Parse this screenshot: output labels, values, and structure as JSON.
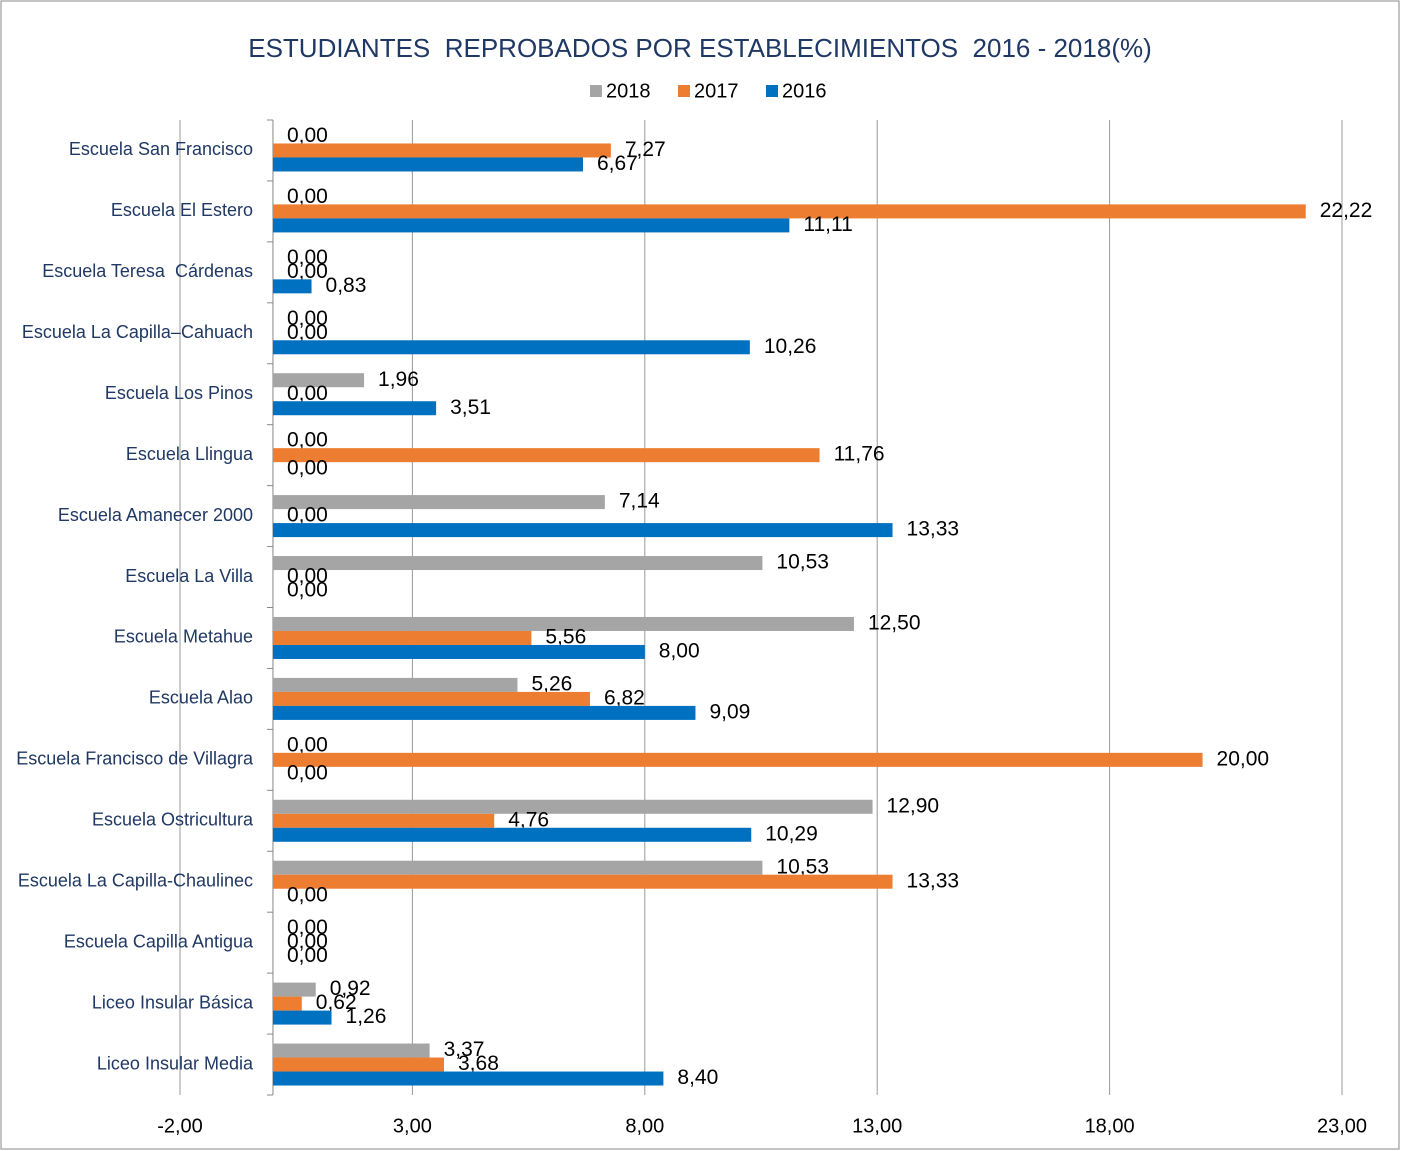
{
  "chart_data": {
    "type": "bar",
    "orientation": "horizontal",
    "title": "ESTUDIANTES  REPROBADOS POR ESTABLECIMIENTOS  2016 - 2018(%)",
    "categories": [
      "Escuela San Francisco",
      "Escuela El Estero",
      "Escuela Teresa  Cárdenas",
      "Escuela La Capilla–Cahuach",
      "Escuela Los Pinos",
      "Escuela Llingua",
      "Escuela Amanecer 2000",
      "Escuela La Villa",
      "Escuela Metahue",
      "Escuela Alao",
      "Escuela Francisco de Villagra",
      "Escuela Ostricultura",
      "Escuela La Capilla-Chaulinec",
      "Escuela Capilla Antigua",
      "Liceo Insular Básica",
      "Liceo Insular Media"
    ],
    "series": [
      {
        "name": "2018",
        "color": "#a5a5a5",
        "values": [
          0,
          0,
          0,
          0,
          1.96,
          0,
          7.14,
          10.53,
          12.5,
          5.26,
          0,
          12.9,
          10.53,
          0,
          0.92,
          3.37
        ],
        "value_labels": [
          "0,00",
          "0,00",
          "0,00",
          "0,00",
          "1,96",
          "0,00",
          "7,14",
          "10,53",
          "12,50",
          "5,26",
          "0,00",
          "12,90",
          "10,53",
          "0,00",
          "0,92",
          "3,37"
        ]
      },
      {
        "name": "2017",
        "color": "#ed7d31",
        "values": [
          7.27,
          22.22,
          0,
          0,
          0,
          11.76,
          0,
          0,
          5.56,
          6.82,
          20,
          4.76,
          13.33,
          0,
          0.62,
          3.68
        ],
        "value_labels": [
          "7,27",
          "22,22",
          "0,00",
          "0,00",
          "0,00",
          "11,76",
          "0,00",
          "0,00",
          "5,56",
          "6,82",
          "20,00",
          "4,76",
          "13,33",
          "0,00",
          "0,62",
          "3,68"
        ]
      },
      {
        "name": "2016",
        "color": "#0070c0",
        "values": [
          6.67,
          11.11,
          0.83,
          10.26,
          3.51,
          0,
          13.33,
          0,
          8,
          9.09,
          0,
          10.29,
          0,
          0,
          1.26,
          8.4
        ],
        "value_labels": [
          "6,67",
          "11,11",
          "0,83",
          "10,26",
          "3,51",
          "0,00",
          "13,33",
          "0,00",
          "8,00",
          "9,09",
          "0,00",
          "10,29",
          "0,00",
          "0,00",
          "1,26",
          "8,40"
        ]
      }
    ],
    "xlim": [
      -2,
      23
    ],
    "xticks": [
      {
        "value": -2,
        "label": "-2,00"
      },
      {
        "value": 3,
        "label": "3,00"
      },
      {
        "value": 8,
        "label": "8,00"
      },
      {
        "value": 13,
        "label": "13,00"
      },
      {
        "value": 18,
        "label": "18,00"
      },
      {
        "value": 23,
        "label": "23,00"
      }
    ],
    "grid": true,
    "legend": "top"
  }
}
